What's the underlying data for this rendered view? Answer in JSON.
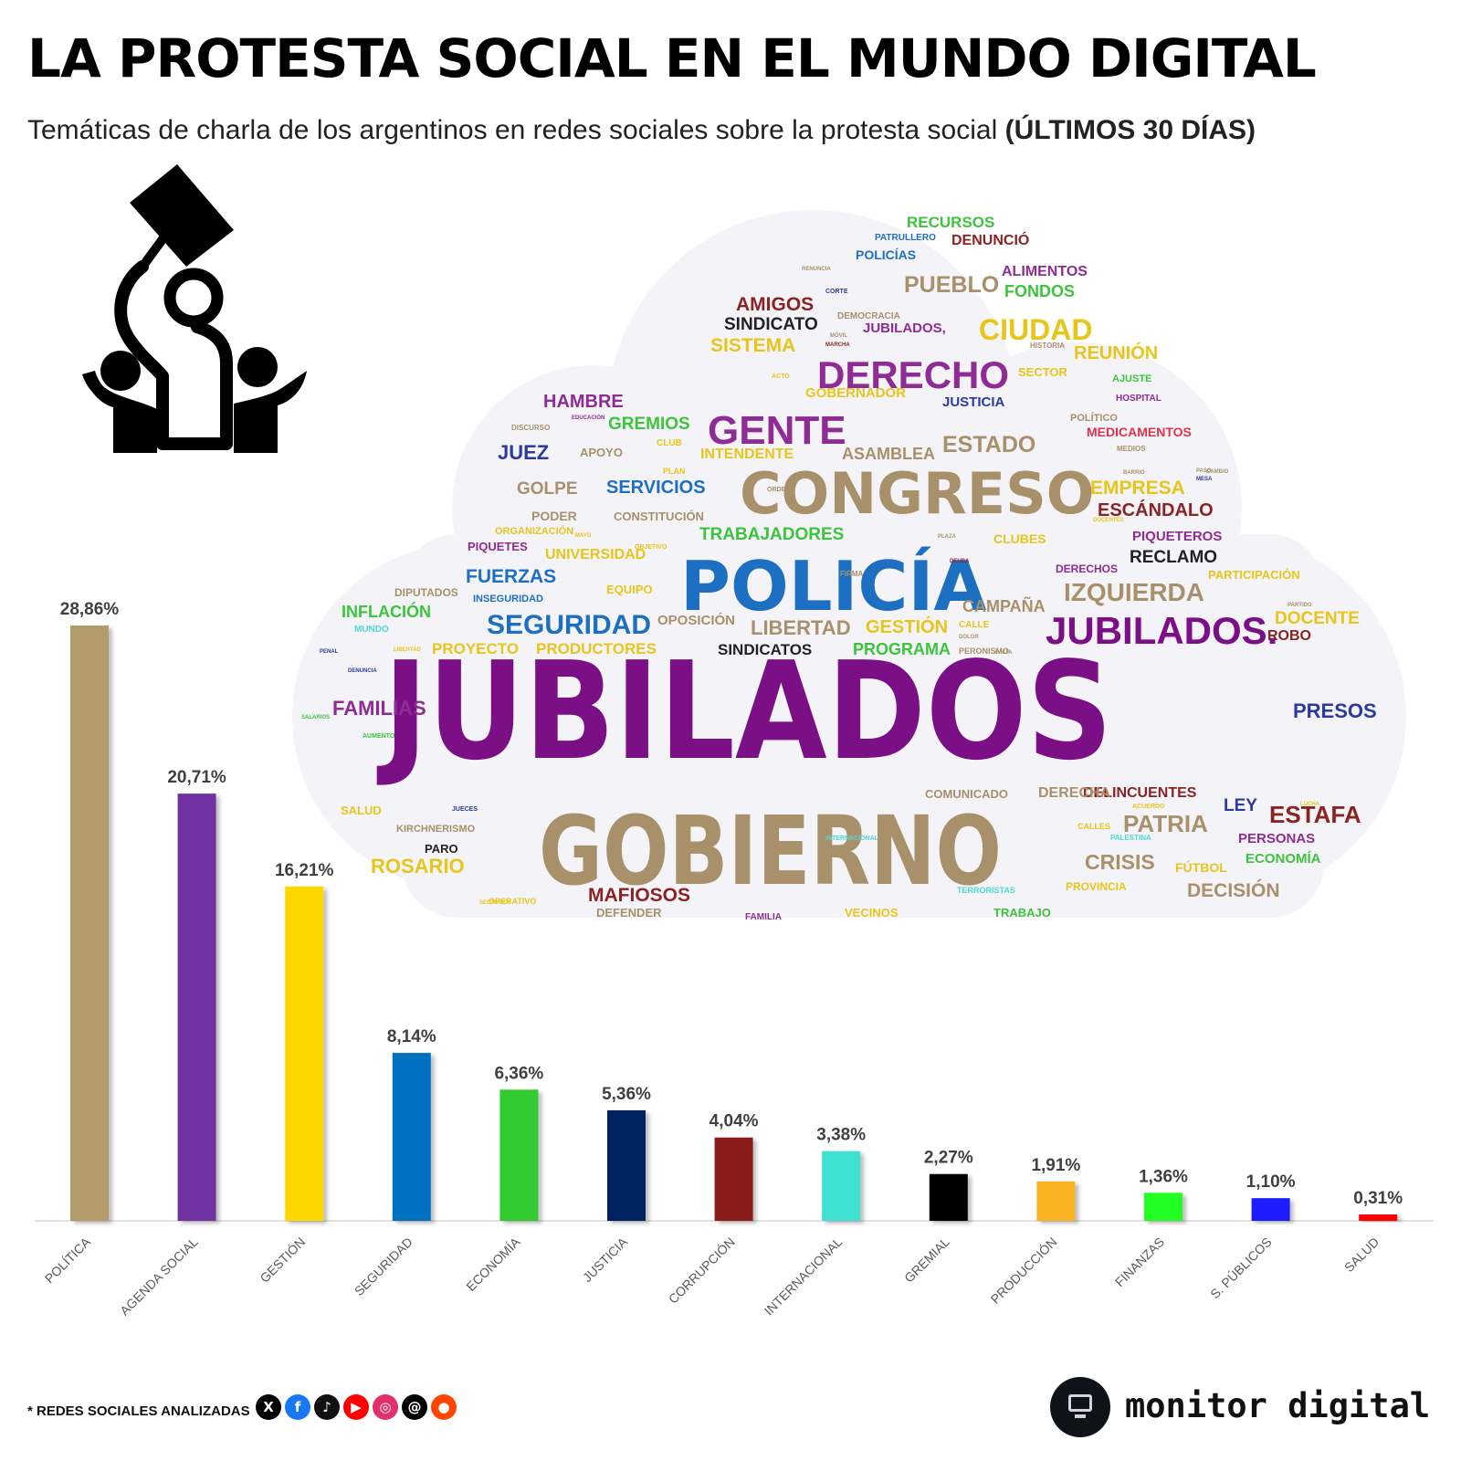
{
  "header": {
    "title": "LA PROTESTA SOCIAL EN EL MUNDO DIGITAL",
    "subtitle": "Temáticas de charla de los argentinos en redes sociales sobre la protesta social",
    "subtitle_bold": "(ÚLTIMOS 30 DÍAS)"
  },
  "word_cloud": [
    {
      "text": "JUBILADOS",
      "color": "#7b0f86",
      "weight": 100
    },
    {
      "text": "GOBIERNO",
      "color": "#a8906a",
      "weight": 60
    },
    {
      "text": "POLICÍA",
      "color": "#1d6fc1",
      "weight": 45
    },
    {
      "text": "CONGRESO",
      "color": "#a8906a",
      "weight": 40
    },
    {
      "text": "DERECHO",
      "color": "#8f2b94",
      "weight": 25
    },
    {
      "text": "GENTE",
      "color": "#8f2b94",
      "weight": 28
    },
    {
      "text": "JUBILADOS.",
      "color": "#7b0f86",
      "weight": 26
    },
    {
      "text": "SEGURIDAD",
      "color": "#1d6fc1",
      "weight": 20
    },
    {
      "text": "IZQUIERDA",
      "color": "#a8906a",
      "weight": 18
    },
    {
      "text": "ESTAFA",
      "color": "#8b2323",
      "weight": 17
    },
    {
      "text": "PATRIA",
      "color": "#a8906a",
      "weight": 16
    },
    {
      "text": "CIUDAD",
      "color": "#e8c51a",
      "weight": 17
    },
    {
      "text": "PUEBLO",
      "color": "#a8906a",
      "weight": 15
    },
    {
      "text": "ESTADO",
      "color": "#a8906a",
      "weight": 15
    },
    {
      "text": "CRISIS",
      "color": "#a8906a",
      "weight": 15
    },
    {
      "text": "FAMILIAS",
      "color": "#8f2b94",
      "weight": 14
    },
    {
      "text": "ROSARIO",
      "color": "#e8c51a",
      "weight": 14
    },
    {
      "text": "MAFIOSOS",
      "color": "#8b2323",
      "weight": 14
    },
    {
      "text": "PRESOS",
      "color": "#2b3a9e",
      "weight": 14
    },
    {
      "text": "JUEZ",
      "color": "#2b3a9e",
      "weight": 14
    },
    {
      "text": "FUERZAS",
      "color": "#1d6fc1",
      "weight": 14
    },
    {
      "text": "LIBERTAD",
      "color": "#a8906a",
      "weight": 14
    },
    {
      "text": "DECISIÓN",
      "color": "#a8906a",
      "weight": 13
    },
    {
      "text": "AMIGOS",
      "color": "#8b2323",
      "weight": 13
    },
    {
      "text": "SISTEMA",
      "color": "#e8c51a",
      "weight": 13
    },
    {
      "text": "SINDICATO",
      "color": "#222222",
      "weight": 12
    },
    {
      "text": "HAMBRE",
      "color": "#8f2b94",
      "weight": 12
    },
    {
      "text": "EMPRESA",
      "color": "#e8c51a",
      "weight": 12
    },
    {
      "text": "ESCÁNDALO",
      "color": "#8b2323",
      "weight": 12
    },
    {
      "text": "RECLAMO",
      "color": "#222222",
      "weight": 11
    },
    {
      "text": "SERVICIOS",
      "color": "#1d6fc1",
      "weight": 12
    },
    {
      "text": "GOLPE",
      "color": "#a8906a",
      "weight": 11
    },
    {
      "text": "CAMPAÑA",
      "color": "#a8906a",
      "weight": 11
    },
    {
      "text": "DOCENTE",
      "color": "#e8c51a",
      "weight": 11
    },
    {
      "text": "GESTIÓN",
      "color": "#e8c51a",
      "weight": 11
    },
    {
      "text": "INFLACIÓN",
      "color": "#3cc43c",
      "weight": 11
    },
    {
      "text": "TRABAJADORES",
      "color": "#3cc43c",
      "weight": 11
    },
    {
      "text": "ASAMBLEA",
      "color": "#a8906a",
      "weight": 11
    },
    {
      "text": "REUNIÓN",
      "color": "#e8c51a",
      "weight": 11
    },
    {
      "text": "GREMIOS",
      "color": "#3cc43c",
      "weight": 11
    },
    {
      "text": "INTENDENTE",
      "color": "#e8c51a",
      "weight": 10
    },
    {
      "text": "UNIVERSIDAD",
      "color": "#e8c51a",
      "weight": 10
    },
    {
      "text": "PRODUCTORES",
      "color": "#e8c51a",
      "weight": 10
    },
    {
      "text": "PROYECTO",
      "color": "#e8c51a",
      "weight": 10
    },
    {
      "text": "PROGRAMA",
      "color": "#3cc43c",
      "weight": 10
    },
    {
      "text": "SINDICATOS",
      "color": "#222222",
      "weight": 10
    },
    {
      "text": "ALIMENTOS",
      "color": "#8f2b94",
      "weight": 10
    },
    {
      "text": "FONDOS",
      "color": "#3cc43c",
      "weight": 10
    },
    {
      "text": "RECURSOS",
      "color": "#3cc43c",
      "weight": 10
    },
    {
      "text": "DENUNCIÓ",
      "color": "#8b2323",
      "weight": 10
    },
    {
      "text": "JUBILADOS,",
      "color": "#8f2b94",
      "weight": 9
    },
    {
      "text": "JUSTICIA",
      "color": "#2b3a9e",
      "weight": 9
    },
    {
      "text": "GOBERNADOR",
      "color": "#e8c51a",
      "weight": 9
    },
    {
      "text": "PIQUETEROS",
      "color": "#8f2b94",
      "weight": 9
    },
    {
      "text": "MEDICAMENTOS",
      "color": "#e0334d",
      "weight": 9
    },
    {
      "text": "PERSONAS",
      "color": "#8f2b94",
      "weight": 9
    },
    {
      "text": "ECONOMÍA",
      "color": "#3cc43c",
      "weight": 9
    },
    {
      "text": "DELINCUENTES",
      "color": "#8b2323",
      "weight": 9
    },
    {
      "text": "DERECHA",
      "color": "#a8906a",
      "weight": 9
    },
    {
      "text": "COMUNICADO",
      "color": "#a8906a",
      "weight": 8
    },
    {
      "text": "LEY",
      "color": "#2b3a9e",
      "weight": 10
    },
    {
      "text": "ROBO",
      "color": "#8b2323",
      "weight": 9
    },
    {
      "text": "PARTICIPACIÓN",
      "color": "#e8c51a",
      "weight": 8
    },
    {
      "text": "OPOSICIÓN",
      "color": "#a8906a",
      "weight": 8
    },
    {
      "text": "POLICÍAS",
      "color": "#1d6fc1",
      "weight": 8
    },
    {
      "text": "SECTOR",
      "color": "#e8c51a",
      "weight": 8
    },
    {
      "text": "PODER",
      "color": "#a8906a",
      "weight": 8
    },
    {
      "text": "CONSTITUCIÓN",
      "color": "#a8906a",
      "weight": 8
    },
    {
      "text": "APOYO",
      "color": "#a8906a",
      "weight": 8
    },
    {
      "text": "EQUIPO",
      "color": "#e8c51a",
      "weight": 8
    },
    {
      "text": "DIPUTADOS",
      "color": "#a8906a",
      "weight": 7
    },
    {
      "text": "PIQUETES",
      "color": "#8f2b94",
      "weight": 7
    },
    {
      "text": "CLUBES",
      "color": "#e8c51a",
      "weight": 8
    },
    {
      "text": "DERECHOS",
      "color": "#8f2b94",
      "weight": 7
    },
    {
      "text": "FÚTBOL",
      "color": "#e8c51a",
      "weight": 8
    },
    {
      "text": "PROVINCIA",
      "color": "#e8c51a",
      "weight": 7
    },
    {
      "text": "TRABAJO",
      "color": "#3cc43c",
      "weight": 7
    },
    {
      "text": "VECINOS",
      "color": "#e8c51a",
      "weight": 7
    },
    {
      "text": "DEFENDER",
      "color": "#a8906a",
      "weight": 7
    },
    {
      "text": "SALUD",
      "color": "#e8c51a",
      "weight": 7
    },
    {
      "text": "PARO",
      "color": "#222222",
      "weight": 7
    },
    {
      "text": "KIRCHNERISMO",
      "color": "#a8906a",
      "weight": 6
    },
    {
      "text": "CALLES",
      "color": "#e8c51a",
      "weight": 6
    },
    {
      "text": "PALESTINA",
      "color": "#4dd9d0",
      "weight": 5
    },
    {
      "text": "AJUSTE",
      "color": "#3cc43c",
      "weight": 6
    },
    {
      "text": "HOSPITAL",
      "color": "#8f2b94",
      "weight": 6
    },
    {
      "text": "INSEGURIDAD",
      "color": "#1d6fc1",
      "weight": 6
    },
    {
      "text": "ORGANIZACIÓN",
      "color": "#e8c51a",
      "weight": 6
    },
    {
      "text": "DEMOCRACIA",
      "color": "#a8906a",
      "weight": 6
    },
    {
      "text": "PATRULLERO",
      "color": "#1d6fc1",
      "weight": 5
    },
    {
      "text": "POLÍTICO",
      "color": "#a8906a",
      "weight": 5
    },
    {
      "text": "CLUB",
      "color": "#e8c51a",
      "weight": 5
    },
    {
      "text": "PLAN",
      "color": "#e8c51a",
      "weight": 5
    },
    {
      "text": "CALLE",
      "color": "#e8c51a",
      "weight": 5
    },
    {
      "text": "MUNDO",
      "color": "#4dd9d0",
      "weight": 5
    },
    {
      "text": "FAMILIA",
      "color": "#8f2b94",
      "weight": 5
    },
    {
      "text": "HISTORIA",
      "color": "#a8906a",
      "weight": 4
    },
    {
      "text": "MEDIOS",
      "color": "#a8906a",
      "weight": 4
    },
    {
      "text": "PERONISMO",
      "color": "#a8906a",
      "weight": 4
    },
    {
      "text": "TERRORISTAS",
      "color": "#4dd9d0",
      "weight": 4
    },
    {
      "text": "OPERATIVO",
      "color": "#e8c51a",
      "weight": 4
    },
    {
      "text": "DISCURSO",
      "color": "#a8906a",
      "weight": 4
    },
    {
      "text": "ACUERDO",
      "color": "#e8c51a",
      "weight": 3
    },
    {
      "text": "CORTE",
      "color": "#2b3a9e",
      "weight": 3
    },
    {
      "text": "JUECES",
      "color": "#2b3a9e",
      "weight": 3
    },
    {
      "text": "INTERNACIONAL",
      "color": "#4dd9d0",
      "weight": 3
    },
    {
      "text": "ACTO",
      "color": "#e8c51a",
      "weight": 3
    },
    {
      "text": "AUMENTO",
      "color": "#3cc43c",
      "weight": 3
    },
    {
      "text": "ORDEN",
      "color": "#a8906a",
      "weight": 3
    },
    {
      "text": "OBJETIVO",
      "color": "#e8c51a",
      "weight": 3
    },
    {
      "text": "SECTORES",
      "color": "#e8c51a",
      "weight": 3
    },
    {
      "text": "RENUNCIA",
      "color": "#a8906a",
      "weight": 3
    },
    {
      "text": "EDUCACIÓN",
      "color": "#8f2b94",
      "weight": 3
    },
    {
      "text": "MÓVIL",
      "color": "#a8906a",
      "weight": 3
    },
    {
      "text": "LIBERTAD",
      "color": "#e8c51a",
      "weight": 3
    },
    {
      "text": "PENAL",
      "color": "#2b3a9e",
      "weight": 3
    },
    {
      "text": "DENUNCIA",
      "color": "#2b3a9e",
      "weight": 3
    },
    {
      "text": "SALARIOS",
      "color": "#3cc43c",
      "weight": 3
    },
    {
      "text": "FALTA",
      "color": "#a8906a",
      "weight": 3
    },
    {
      "text": "PLAZA",
      "color": "#a8906a",
      "weight": 3
    },
    {
      "text": "DOCENTES",
      "color": "#e8c51a",
      "weight": 3
    },
    {
      "text": "MAYO",
      "color": "#e8c51a",
      "weight": 3
    },
    {
      "text": "PARTIDO",
      "color": "#a8906a",
      "weight": 3
    },
    {
      "text": "DEUDA",
      "color": "#8b2323",
      "weight": 3
    },
    {
      "text": "BARRIO",
      "color": "#a8906a",
      "weight": 3
    },
    {
      "text": "MARCHA",
      "color": "#8b2323",
      "weight": 3
    },
    {
      "text": "CAMBIO",
      "color": "#a8906a",
      "weight": 3
    },
    {
      "text": "LUCHA",
      "color": "#e8c51a",
      "weight": 3
    },
    {
      "text": "DOLOR",
      "color": "#a8906a",
      "weight": 3
    },
    {
      "text": "PASO",
      "color": "#a8906a",
      "weight": 3
    },
    {
      "text": "MESA",
      "color": "#2b3a9e",
      "weight": 3
    },
    {
      "text": "FIRMA",
      "color": "#a8906a",
      "weight": 3
    }
  ],
  "chart_data": {
    "type": "bar",
    "categories": [
      "POLÍTICA",
      "AGENDA SOCIAL",
      "GESTIÓN",
      "SEGURIDAD",
      "ECONOMÍA",
      "JUSTICIA",
      "CORRUPCIÓN",
      "INTERNACIONAL",
      "GREMIAL",
      "PRODUCCIÓN",
      "FINANZAS",
      "S. PÚBLICOS",
      "SALUD"
    ],
    "values": [
      28.86,
      20.71,
      16.21,
      8.14,
      6.36,
      5.36,
      4.04,
      3.38,
      2.27,
      1.91,
      1.36,
      1.1,
      0.31
    ],
    "data_labels": [
      "28,86%",
      "20,71%",
      "16,21%",
      "8,14%",
      "6,36%",
      "5,36%",
      "4,04%",
      "3,38%",
      "2,27%",
      "1,91%",
      "1,36%",
      "1,10%",
      "0,31%"
    ],
    "colors": [
      "#b59b6c",
      "#7030a0",
      "#ffd700",
      "#0070c0",
      "#33cc33",
      "#002060",
      "#8b1a1a",
      "#40e0d0",
      "#000000",
      "#f9b323",
      "#22ff22",
      "#1a1aff",
      "#ff0000"
    ],
    "title": "",
    "xlabel": "",
    "ylabel": "",
    "ylim": [
      0,
      28.86
    ],
    "grid": false,
    "legend": "none"
  },
  "footer": {
    "note": "* REDES SOCIALES ANALIZADAS",
    "social_networks": [
      {
        "name": "x-icon",
        "glyph": "X",
        "color": "#000000"
      },
      {
        "name": "facebook-icon",
        "glyph": "f",
        "color": "#1877f2"
      },
      {
        "name": "tiktok-icon",
        "glyph": "♪",
        "color": "#111111"
      },
      {
        "name": "youtube-icon",
        "glyph": "▶",
        "color": "#ff0000"
      },
      {
        "name": "instagram-icon",
        "glyph": "◎",
        "color": "#e1306c"
      },
      {
        "name": "threads-icon",
        "glyph": "@",
        "color": "#000000"
      },
      {
        "name": "reddit-icon",
        "glyph": "●",
        "color": "#ff4500"
      }
    ],
    "brand": "monitor digital"
  }
}
